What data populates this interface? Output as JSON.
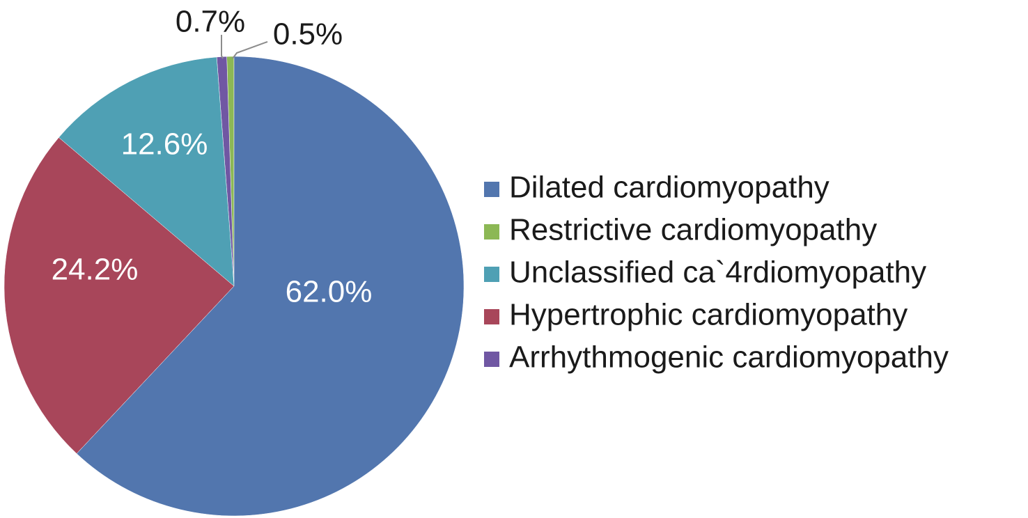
{
  "chart_data": {
    "type": "pie",
    "title": "",
    "slices": [
      {
        "name": "Dilated cardiomyopathy",
        "value": 62.0,
        "label": "62.0%",
        "color": "#5276AE",
        "label_color": "#ffffff",
        "label_position": "inside"
      },
      {
        "name": "Restrictive cardiomyopathy",
        "value": 0.5,
        "label": "0.5%",
        "color": "#8CB855",
        "label_color": "#1a1a1a",
        "label_position": "outside"
      },
      {
        "name": "Unclassified ca`4rdiomyopathy",
        "value": 12.6,
        "label": "12.6%",
        "color": "#4FA0B4",
        "label_color": "#ffffff",
        "label_position": "inside"
      },
      {
        "name": "Hypertrophic cardiomyopathy",
        "value": 24.2,
        "label": "24.2%",
        "color": "#A8465A",
        "label_color": "#ffffff",
        "label_position": "inside"
      },
      {
        "name": "Arrhythmogenic cardiomyopathy",
        "value": 0.7,
        "label": "0.7%",
        "color": "#7057A3",
        "label_color": "#1a1a1a",
        "label_position": "outside"
      }
    ],
    "slice_order_counterclockwise_from_top": [
      "Restrictive cardiomyopathy",
      "Arrhythmogenic cardiomyopathy",
      "Unclassified ca`4rdiomyopathy",
      "Hypertrophic cardiomyopathy",
      "Dilated cardiomyopathy"
    ],
    "legend": {
      "position": "right",
      "entries": [
        "Dilated cardiomyopathy",
        "Restrictive cardiomyopathy",
        "Unclassified ca`4rdiomyopathy",
        "Hypertrophic cardiomyopathy",
        "Arrhythmogenic cardiomyopathy"
      ]
    },
    "leader_line_color": "#8c8c8c"
  }
}
